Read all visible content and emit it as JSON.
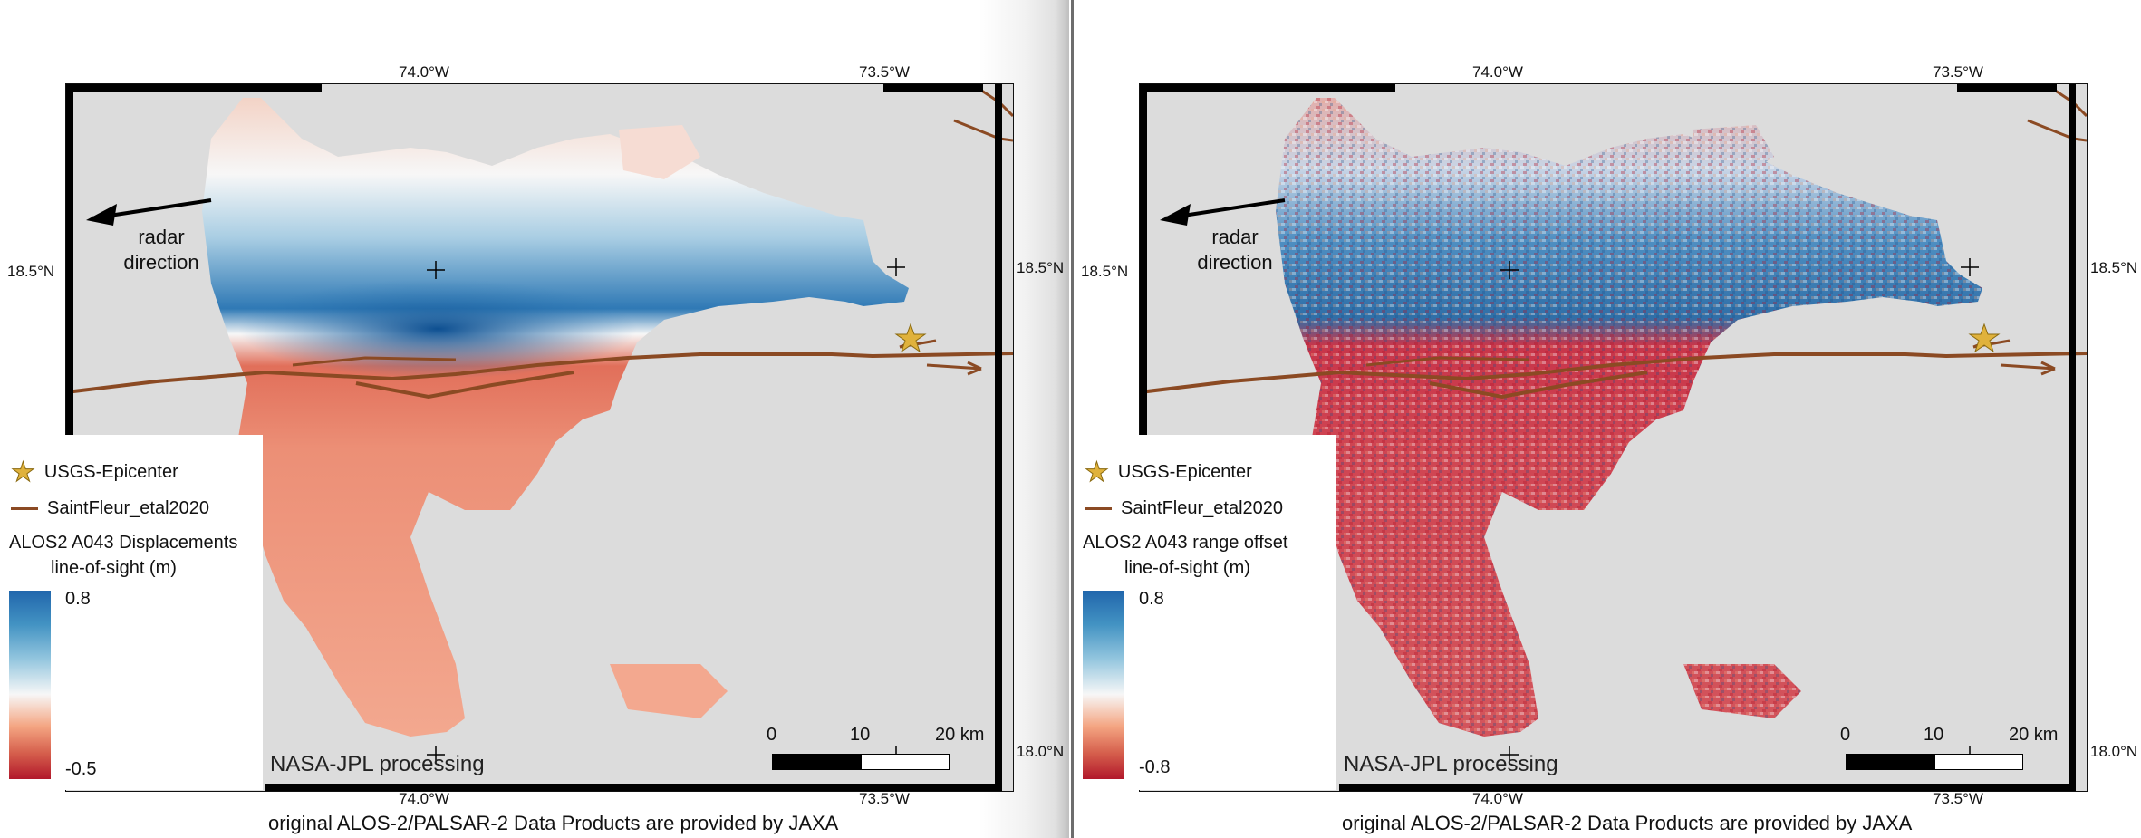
{
  "colors": {
    "background_map": "#dcdcdc",
    "uplift": "#2166ac",
    "subsidence": "#d6604d",
    "fault": "#8b4a23",
    "epicenter": "#e0b23c"
  },
  "axes": {
    "lon_top_left": "74.0°W",
    "lon_top_right": "73.5°W",
    "lon_bottom_left": "74.0°W",
    "lon_bottom_right": "73.5°W",
    "lat_upper": "18.5°N",
    "lat_lower": "18.0°N"
  },
  "annotations": {
    "radar_line1": "radar",
    "radar_line2": "direction",
    "processing": "NASA-JPL processing",
    "credit": "original ALOS-2/PALSAR-2 Data Products are provided by JAXA"
  },
  "legend": {
    "epicenter_icon": "star-icon",
    "epicenter_label": "USGS-Epicenter",
    "fault_label": "SaintFleur_etal2020"
  },
  "scalebar": {
    "tick0": "0",
    "tick1": "10",
    "tick2": "20 km"
  },
  "panels": [
    {
      "colorbar_title_line1": "ALOS2 A043 Displacements",
      "colorbar_title_line2": "line-of-sight (m)",
      "colorbar_max": "0.8",
      "colorbar_min": "-0.5"
    },
    {
      "colorbar_title_line1": "ALOS2 A043 range offset",
      "colorbar_title_line2": "line-of-sight (m)",
      "colorbar_max": "0.8",
      "colorbar_min": "-0.8"
    }
  ]
}
